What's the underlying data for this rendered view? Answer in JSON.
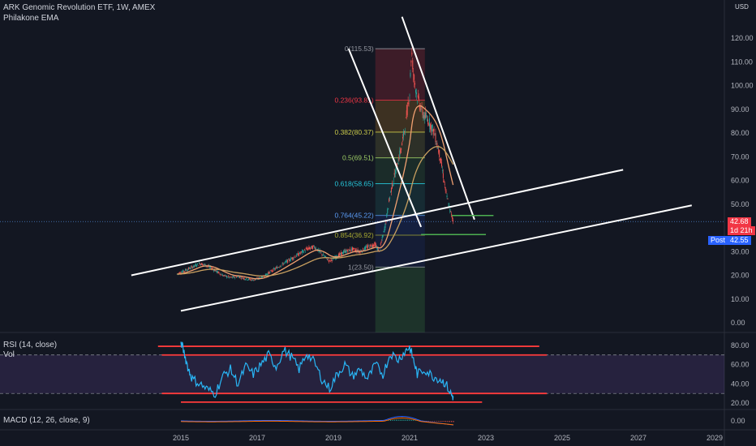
{
  "header": {
    "title": "ARK Genomic Revolution ETF, 1W, AMEX",
    "indicator": "Philakone EMA",
    "currency": "USD"
  },
  "price_tag": {
    "value": "42.68",
    "countdown": "1d 21h"
  },
  "post_tag": {
    "label": "Post",
    "value": "42.55"
  },
  "rsi_panel": {
    "title": "RSI (14, close)",
    "vol_label": "Vol",
    "ticks": [
      "80.00",
      "60.00",
      "40.00",
      "20.00"
    ]
  },
  "macd_panel": {
    "title": "MACD (12, 26, close, 9)",
    "ticks": [
      "0.00"
    ]
  },
  "price_axis_ticks": [
    "120.00",
    "110.00",
    "100.00",
    "90.00",
    "80.00",
    "70.00",
    "60.00",
    "50.00",
    "40.00",
    "30.00",
    "20.00",
    "10.00",
    "0.00"
  ],
  "time_axis_ticks": [
    "2015",
    "2017",
    "2019",
    "2021",
    "2023",
    "2025",
    "2027",
    "2029"
  ],
  "fib_levels": [
    {
      "label": "0(115.53)",
      "value": 115.53,
      "color": "#9598a1"
    },
    {
      "label": "0.236(93.81)",
      "value": 93.81,
      "color": "#f23645"
    },
    {
      "label": "0.382(80.37)",
      "value": 80.37,
      "color": "#c9c94a"
    },
    {
      "label": "0.5(69.51)",
      "value": 69.51,
      "color": "#9ccc65"
    },
    {
      "label": "0.618(58.65)",
      "value": 58.65,
      "color": "#26c6da"
    },
    {
      "label": "0.764(45.22)",
      "value": 45.22,
      "color": "#5b9cf6"
    },
    {
      "label": "0.854(36.92)",
      "value": 36.92,
      "color": "#a6a832"
    },
    {
      "label": "1(23.50)",
      "value": 23.5,
      "color": "#9598a1"
    }
  ],
  "colors": {
    "background": "#131722",
    "candle_up": "#26a69a",
    "candle_down": "#ef5350",
    "ema_fast": "#f0a070",
    "ema_slow": "#c9a060",
    "rsi_line": "#29b6f6",
    "rsi_band": "#7e57c2",
    "trendline": "#ffffff",
    "hline_red": "#ff3b3b",
    "hline_green": "#4caf50",
    "price_tag": "#f23645",
    "post_tag": "#2962ff"
  },
  "chart_data": {
    "type": "line",
    "title": "ARK Genomic Revolution ETF, 1W, AMEX",
    "ylabel": "USD",
    "ylim": [
      0,
      120
    ],
    "xlim": [
      2014.9,
      2029.3
    ],
    "x": [
      2014.9,
      2015.1,
      2015.3,
      2015.5,
      2015.7,
      2015.9,
      2016.1,
      2016.3,
      2016.5,
      2016.7,
      2016.9,
      2017.1,
      2017.3,
      2017.5,
      2017.7,
      2017.9,
      2018.1,
      2018.3,
      2018.5,
      2018.7,
      2018.9,
      2019.1,
      2019.3,
      2019.5,
      2019.7,
      2019.9,
      2020.1,
      2020.2,
      2020.35,
      2020.5,
      2020.65,
      2020.8,
      2020.9,
      2021.0,
      2021.05,
      2021.1,
      2021.2,
      2021.35,
      2021.5,
      2021.65,
      2021.8,
      2021.95,
      2022.05,
      2022.15
    ],
    "series": [
      {
        "values": [
          20.5,
          22,
          23.5,
          25,
          24,
          22,
          20,
          19,
          19.5,
          18.5,
          18,
          19,
          21,
          23,
          25,
          27,
          29,
          31,
          32,
          29,
          26,
          28,
          30,
          31,
          30,
          32,
          33,
          30,
          40,
          55,
          65,
          75,
          85,
          97,
          115,
          105,
          95,
          88,
          85,
          80,
          70,
          55,
          48,
          42.68
        ]
      }
    ],
    "rsi": {
      "ylim": [
        15,
        90
      ],
      "x": [
        2015.0,
        2015.1,
        2015.2,
        2015.3,
        2015.5,
        2015.7,
        2015.9,
        2016.1,
        2016.3,
        2016.5,
        2016.7,
        2016.9,
        2017.1,
        2017.3,
        2017.5,
        2017.7,
        2017.9,
        2018.1,
        2018.3,
        2018.5,
        2018.7,
        2018.9,
        2019.1,
        2019.3,
        2019.5,
        2019.7,
        2019.9,
        2020.1,
        2020.3,
        2020.5,
        2020.7,
        2020.9,
        2021.0,
        2021.1,
        2021.2,
        2021.4,
        2021.6,
        2021.8,
        2021.95,
        2022.1,
        2022.15
      ],
      "values": [
        84,
        70,
        55,
        45,
        40,
        34,
        30,
        48,
        55,
        40,
        58,
        50,
        60,
        70,
        58,
        75,
        68,
        55,
        72,
        62,
        45,
        35,
        50,
        60,
        48,
        55,
        45,
        60,
        50,
        72,
        65,
        75,
        78,
        65,
        50,
        55,
        48,
        45,
        40,
        28,
        26
      ]
    }
  }
}
